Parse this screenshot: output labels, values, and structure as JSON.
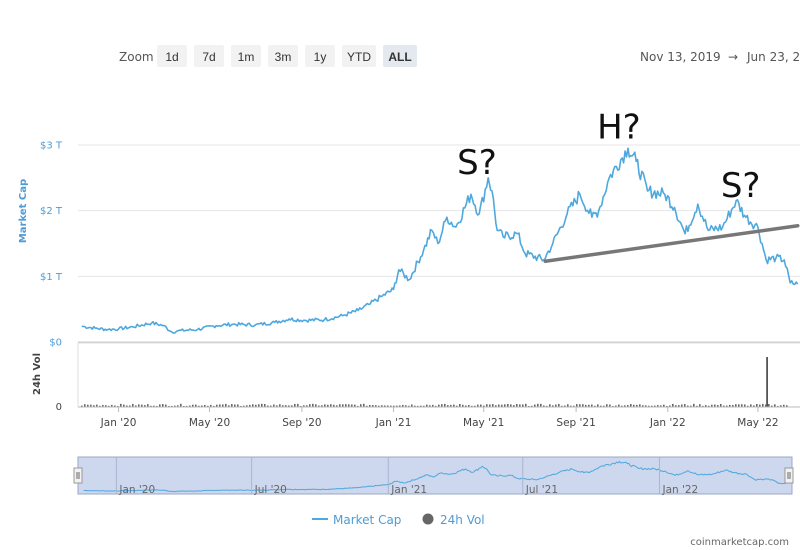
{
  "zoom": {
    "label": "Zoom",
    "buttons": [
      "1d",
      "7d",
      "1m",
      "3m",
      "1y",
      "YTD",
      "ALL"
    ],
    "selected": "ALL"
  },
  "range": {
    "from": "Nov 13, 2019",
    "arrow": "→",
    "to": "Jun 23, 2"
  },
  "legend": {
    "market_cap": {
      "label": "Market Cap",
      "color": "#4ea8de"
    },
    "volume": {
      "label": "24h Vol",
      "color": "#666666"
    }
  },
  "credit": "coinmarketcap.com",
  "annotations": {
    "left": "S?",
    "head": "H?",
    "right": "S?"
  },
  "colors": {
    "accent": "#4ea8de",
    "navigator_fill": "#cdd7ed",
    "neckline": "#777777"
  },
  "chart_data": [
    {
      "type": "line",
      "series_name": "Market Cap",
      "ylabel": "Market Cap",
      "y_ticks": [
        "$0",
        "$1 T",
        "$2 T",
        "$3 T"
      ],
      "y_tick_values": [
        0,
        1,
        2,
        3
      ],
      "ylim": [
        0,
        3.2
      ],
      "y_unit": "trillion USD",
      "x_ticks": [
        "Jan '20",
        "May '20",
        "Sep '20",
        "Jan '21",
        "May '21",
        "Sep '21",
        "Jan '22",
        "May '22"
      ],
      "x_tick_dates": [
        "2020-01-01",
        "2020-05-01",
        "2020-09-01",
        "2021-01-01",
        "2021-05-01",
        "2021-09-01",
        "2022-01-01",
        "2022-05-01"
      ],
      "xlim": [
        "2019-11-13",
        "2022-06-23"
      ],
      "points": [
        [
          "2019-11-13",
          0.24
        ],
        [
          "2019-12-01",
          0.21
        ],
        [
          "2019-12-18",
          0.19
        ],
        [
          "2020-01-01",
          0.2
        ],
        [
          "2020-01-20",
          0.23
        ],
        [
          "2020-02-14",
          0.29
        ],
        [
          "2020-03-01",
          0.25
        ],
        [
          "2020-03-12",
          0.15
        ],
        [
          "2020-03-20",
          0.17
        ],
        [
          "2020-04-15",
          0.19
        ],
        [
          "2020-05-10",
          0.25
        ],
        [
          "2020-06-01",
          0.27
        ],
        [
          "2020-07-01",
          0.26
        ],
        [
          "2020-07-27",
          0.3
        ],
        [
          "2020-08-15",
          0.35
        ],
        [
          "2020-09-05",
          0.33
        ],
        [
          "2020-10-01",
          0.34
        ],
        [
          "2020-10-25",
          0.4
        ],
        [
          "2020-11-15",
          0.48
        ],
        [
          "2020-12-01",
          0.58
        ],
        [
          "2020-12-17",
          0.7
        ],
        [
          "2021-01-01",
          0.8
        ],
        [
          "2021-01-08",
          1.1
        ],
        [
          "2021-01-22",
          0.95
        ],
        [
          "2021-02-10",
          1.4
        ],
        [
          "2021-02-21",
          1.7
        ],
        [
          "2021-03-01",
          1.5
        ],
        [
          "2021-03-13",
          1.9
        ],
        [
          "2021-03-25",
          1.75
        ],
        [
          "2021-04-14",
          2.25
        ],
        [
          "2021-04-25",
          1.95
        ],
        [
          "2021-05-07",
          2.5
        ],
        [
          "2021-05-12",
          2.3
        ],
        [
          "2021-05-19",
          1.7
        ],
        [
          "2021-05-27",
          1.6
        ],
        [
          "2021-06-15",
          1.65
        ],
        [
          "2021-06-25",
          1.35
        ],
        [
          "2021-07-20",
          1.25
        ],
        [
          "2021-08-01",
          1.5
        ],
        [
          "2021-08-20",
          1.95
        ],
        [
          "2021-09-06",
          2.25
        ],
        [
          "2021-09-22",
          1.9
        ],
        [
          "2021-10-01",
          2.0
        ],
        [
          "2021-10-15",
          2.5
        ],
        [
          "2021-11-09",
          2.95
        ],
        [
          "2021-11-20",
          2.75
        ],
        [
          "2021-12-05",
          2.3
        ],
        [
          "2021-12-28",
          2.25
        ],
        [
          "2022-01-10",
          2.05
        ],
        [
          "2022-01-24",
          1.65
        ],
        [
          "2022-02-10",
          2.1
        ],
        [
          "2022-02-24",
          1.7
        ],
        [
          "2022-03-15",
          1.75
        ],
        [
          "2022-04-02",
          2.15
        ],
        [
          "2022-04-15",
          1.9
        ],
        [
          "2022-05-01",
          1.75
        ],
        [
          "2022-05-12",
          1.25
        ],
        [
          "2022-05-25",
          1.28
        ],
        [
          "2022-06-05",
          1.25
        ],
        [
          "2022-06-13",
          0.9
        ],
        [
          "2022-06-23",
          0.88
        ]
      ]
    },
    {
      "type": "bar",
      "series_name": "24h Vol",
      "ylabel": "24h Vol",
      "y_ticks": [
        "0"
      ],
      "note": "volume bars low throughout with a single tall spike in May 2022",
      "spike": [
        "2022-05-12",
        1.0
      ],
      "baseline_level": 0.05
    },
    {
      "type": "line",
      "series_name": "navigator",
      "x_ticks": [
        "Jan '20",
        "Jul '20",
        "Jan '21",
        "Jul '21",
        "Jan '22"
      ],
      "x_tick_dates": [
        "2020-01-01",
        "2020-07-01",
        "2021-01-01",
        "2021-07-01",
        "2022-01-01"
      ]
    }
  ],
  "neckline": {
    "from": [
      "2021-07-22",
      1.23
    ],
    "to": [
      "2022-06-23",
      1.77
    ]
  }
}
